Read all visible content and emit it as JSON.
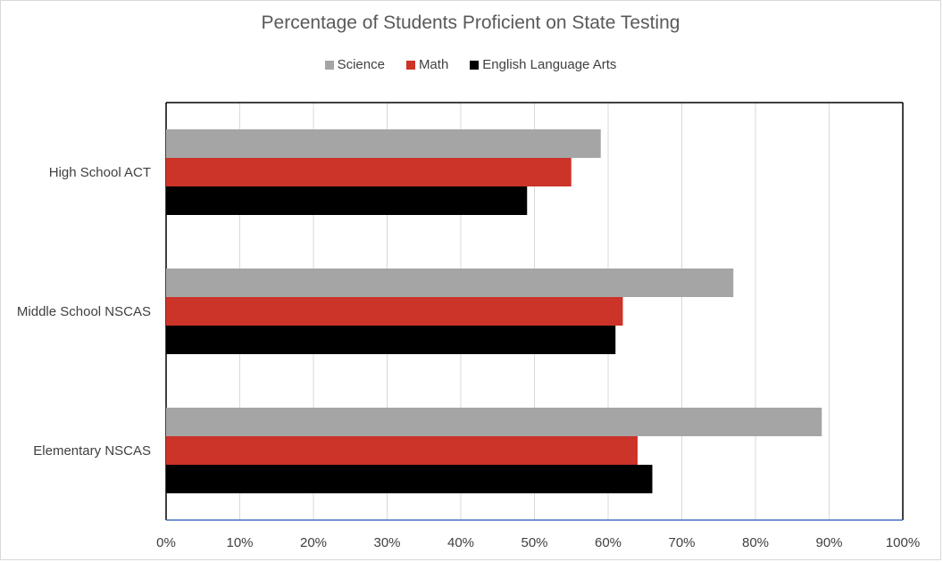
{
  "chart_data": {
    "type": "bar",
    "orientation": "horizontal",
    "title": "Percentage of Students Proficient on State Testing",
    "categories": [
      "High School ACT",
      "Middle School NSCAS",
      "Elementary NSCAS"
    ],
    "series": [
      {
        "name": "Science",
        "color": "#a5a5a5",
        "values": [
          59,
          77,
          89
        ]
      },
      {
        "name": "Math",
        "color": "#cc3329",
        "values": [
          55,
          62,
          64
        ]
      },
      {
        "name": "English Language Arts",
        "color": "#000000",
        "values": [
          49,
          61,
          66
        ]
      }
    ],
    "xlim": [
      0,
      100
    ],
    "x_ticks": [
      "0%",
      "10%",
      "20%",
      "30%",
      "40%",
      "50%",
      "60%",
      "70%",
      "80%",
      "90%",
      "100%"
    ],
    "grid": true,
    "legend_position": "top"
  }
}
